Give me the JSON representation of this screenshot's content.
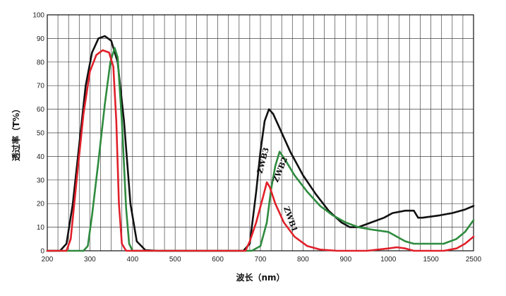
{
  "chart_data": {
    "type": "line",
    "xlabel": "波长（nm）",
    "ylabel": "透过率（T%）",
    "ylim": [
      0,
      100
    ],
    "y_ticks": [
      "0",
      "10",
      "20",
      "30",
      "40",
      "50",
      "60",
      "70",
      "80",
      "90",
      "100"
    ],
    "x_ticks": [
      "200",
      "300",
      "400",
      "500",
      "600",
      "700",
      "800",
      "900",
      "1000",
      "1500",
      "2500"
    ],
    "grid": true,
    "series": [
      {
        "name": "ZWB3",
        "color": "#111111",
        "points": [
          [
            200,
            0
          ],
          [
            230,
            0
          ],
          [
            245,
            3
          ],
          [
            260,
            20
          ],
          [
            275,
            45
          ],
          [
            290,
            70
          ],
          [
            305,
            84
          ],
          [
            320,
            90
          ],
          [
            335,
            91
          ],
          [
            350,
            89
          ],
          [
            365,
            80
          ],
          [
            380,
            55
          ],
          [
            395,
            20
          ],
          [
            410,
            4
          ],
          [
            430,
            0.3
          ],
          [
            460,
            0
          ],
          [
            660,
            0
          ],
          [
            675,
            3
          ],
          [
            690,
            25
          ],
          [
            700,
            42
          ],
          [
            710,
            55
          ],
          [
            720,
            60
          ],
          [
            730,
            58
          ],
          [
            745,
            52
          ],
          [
            770,
            42
          ],
          [
            800,
            32
          ],
          [
            830,
            24
          ],
          [
            860,
            17
          ],
          [
            890,
            12
          ],
          [
            910,
            10
          ],
          [
            930,
            10
          ],
          [
            960,
            12
          ],
          [
            990,
            14
          ],
          [
            1050,
            16
          ],
          [
            1200,
            17
          ],
          [
            1300,
            17
          ],
          [
            1350,
            14
          ],
          [
            1400,
            14
          ],
          [
            1700,
            15
          ],
          [
            2000,
            16
          ],
          [
            2300,
            17.5
          ],
          [
            2500,
            19
          ]
        ]
      },
      {
        "name": "ZWB2",
        "color": "#2e8b3e",
        "points": [
          [
            200,
            0
          ],
          [
            285,
            0
          ],
          [
            295,
            2
          ],
          [
            305,
            15
          ],
          [
            320,
            38
          ],
          [
            335,
            62
          ],
          [
            348,
            80
          ],
          [
            358,
            86
          ],
          [
            365,
            82
          ],
          [
            375,
            55
          ],
          [
            385,
            18
          ],
          [
            392,
            3
          ],
          [
            400,
            0
          ],
          [
            680,
            0
          ],
          [
            700,
            2
          ],
          [
            715,
            12
          ],
          [
            725,
            26
          ],
          [
            735,
            36
          ],
          [
            745,
            42
          ],
          [
            760,
            38
          ],
          [
            780,
            32
          ],
          [
            810,
            25
          ],
          [
            840,
            19
          ],
          [
            870,
            15
          ],
          [
            900,
            12
          ],
          [
            930,
            10
          ],
          [
            960,
            9
          ],
          [
            1000,
            8
          ],
          [
            1100,
            6
          ],
          [
            1200,
            4
          ],
          [
            1300,
            3
          ],
          [
            1500,
            3
          ],
          [
            1800,
            3
          ],
          [
            2100,
            5
          ],
          [
            2300,
            8
          ],
          [
            2500,
            13
          ]
        ]
      },
      {
        "name": "ZWB1",
        "color": "#e0202a",
        "points": [
          [
            200,
            0
          ],
          [
            245,
            0
          ],
          [
            255,
            5
          ],
          [
            270,
            32
          ],
          [
            285,
            58
          ],
          [
            300,
            76
          ],
          [
            315,
            83
          ],
          [
            330,
            85
          ],
          [
            345,
            84
          ],
          [
            355,
            78
          ],
          [
            362,
            55
          ],
          [
            368,
            20
          ],
          [
            375,
            3
          ],
          [
            385,
            0
          ],
          [
            665,
            0
          ],
          [
            675,
            4
          ],
          [
            690,
            12
          ],
          [
            705,
            22
          ],
          [
            715,
            29
          ],
          [
            722,
            27
          ],
          [
            735,
            20
          ],
          [
            755,
            12
          ],
          [
            780,
            6
          ],
          [
            810,
            2
          ],
          [
            840,
            0.5
          ],
          [
            880,
            0
          ],
          [
            950,
            0
          ],
          [
            1000,
            1
          ],
          [
            1100,
            1.5
          ],
          [
            1200,
            1
          ],
          [
            1300,
            0
          ],
          [
            1500,
            0
          ],
          [
            1800,
            0
          ],
          [
            2100,
            1
          ],
          [
            2300,
            3
          ],
          [
            2500,
            6
          ]
        ]
      }
    ]
  }
}
